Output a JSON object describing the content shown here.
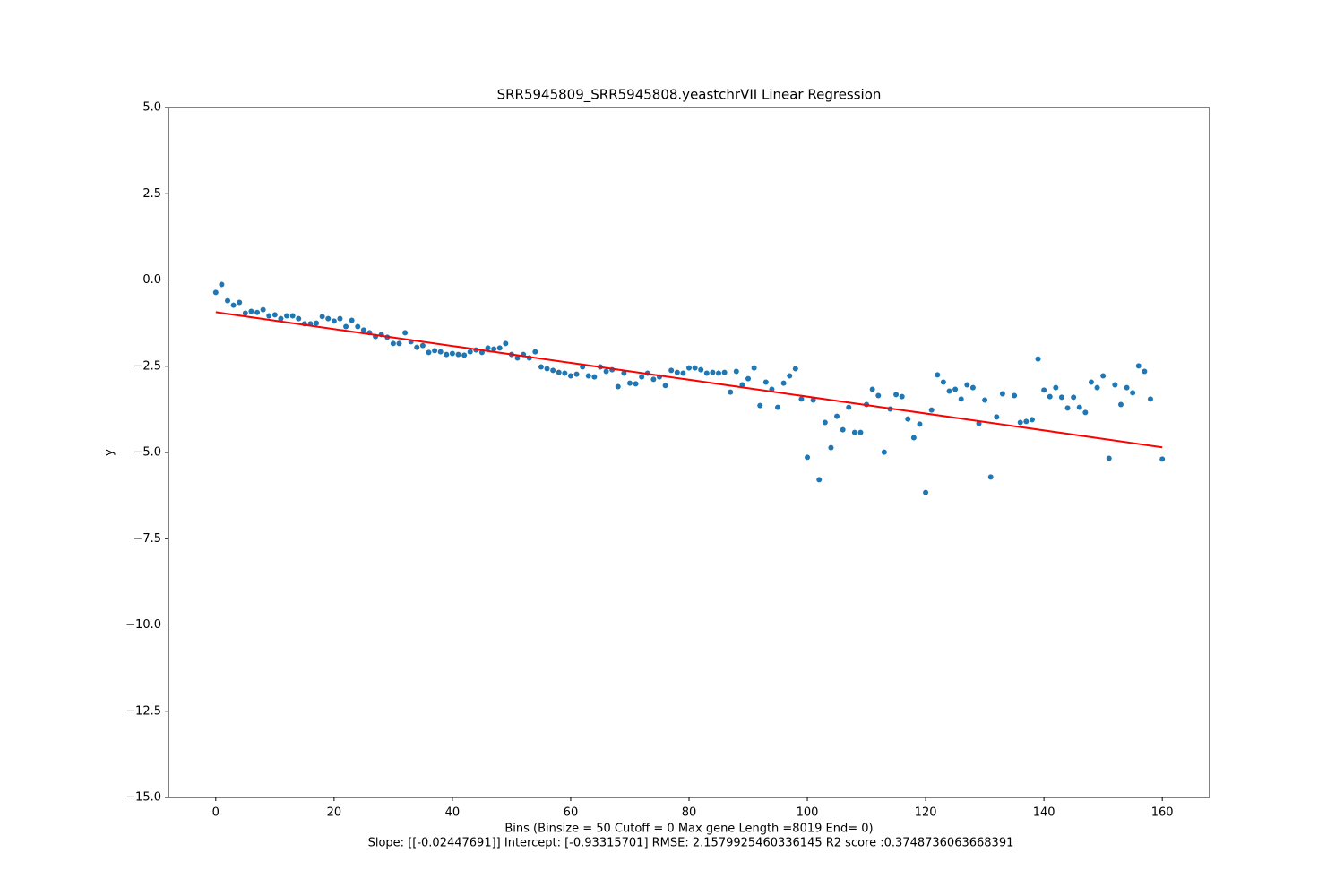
{
  "chart_data": {
    "type": "scatter",
    "title": "SRR5945809_SRR5945808.yeastchrVII Linear Regression",
    "x_label": "Bins  (Binsize = 50 Cutoff = 0 Max gene Length =8019 End= 0)",
    "x_label_2": "Slope: [[-0.02447691]] Intercept: [-0.93315701] RMSE: 2.1579925460336145 R2 score :0.3748736063668391",
    "y_label": "y",
    "xlim": [
      -8,
      168
    ],
    "ylim": [
      -15,
      5
    ],
    "xticks": [
      0,
      20,
      40,
      60,
      80,
      100,
      120,
      140,
      160
    ],
    "yticks": [
      {
        "value": -15,
        "label": "−15.0"
      },
      {
        "value": -12.5,
        "label": "−12.5"
      },
      {
        "value": -10,
        "label": "−10.0"
      },
      {
        "value": -7.5,
        "label": "−7.5"
      },
      {
        "value": -5,
        "label": "−5.0"
      },
      {
        "value": -2.5,
        "label": "−2.5"
      },
      {
        "value": 0,
        "label": "0.0"
      },
      {
        "value": 2.5,
        "label": "2.5"
      },
      {
        "value": 5,
        "label": "5.0"
      }
    ],
    "series": [
      {
        "color": "#1f77b4",
        "x": [
          0,
          1,
          2,
          3,
          4,
          5,
          6,
          7,
          8,
          9,
          10,
          11,
          12,
          13,
          14,
          15,
          16,
          17,
          18,
          19,
          20,
          21,
          22,
          23,
          24,
          25,
          26,
          27,
          28,
          29,
          30,
          31,
          32,
          33,
          34,
          35,
          36,
          37,
          38,
          39,
          40,
          41,
          42,
          43,
          44,
          45,
          46,
          47,
          48,
          49,
          50,
          51,
          52,
          53,
          54,
          55,
          56,
          57,
          58,
          59,
          60,
          61,
          62,
          63,
          64,
          65,
          66,
          67,
          68,
          69,
          70,
          71,
          72,
          73,
          74,
          75,
          76,
          77,
          78,
          79,
          80,
          81,
          82,
          83,
          84,
          85,
          86,
          87,
          88,
          89,
          90,
          91,
          92,
          93,
          94,
          95,
          96,
          97,
          98,
          99,
          100,
          101,
          102,
          103,
          104,
          105,
          106,
          107,
          108,
          109,
          110,
          111,
          112,
          113,
          114,
          115,
          116,
          117,
          118,
          119,
          120,
          121,
          122,
          123,
          124,
          125,
          126,
          127,
          128,
          129,
          130,
          131,
          132,
          133,
          135,
          136,
          137,
          138,
          139,
          140,
          141,
          142,
          143,
          144,
          145,
          146,
          147,
          148,
          149,
          150,
          151,
          152,
          153,
          154,
          155,
          156,
          157,
          158,
          160
        ],
        "values": [
          -0.36,
          -0.13,
          -0.6,
          -0.73,
          -0.65,
          -0.96,
          -0.91,
          -0.94,
          -0.86,
          -1.04,
          -1.01,
          -1.12,
          -1.04,
          -1.04,
          -1.12,
          -1.27,
          -1.27,
          -1.25,
          -1.06,
          -1.12,
          -1.19,
          -1.12,
          -1.35,
          -1.17,
          -1.35,
          -1.45,
          -1.53,
          -1.64,
          -1.58,
          -1.66,
          -1.84,
          -1.84,
          -1.53,
          -1.79,
          -1.95,
          -1.9,
          -2.1,
          -2.05,
          -2.08,
          -2.16,
          -2.13,
          -2.16,
          -2.18,
          -2.08,
          -2.03,
          -2.1,
          -1.97,
          -2.0,
          -1.97,
          -1.84,
          -2.16,
          -2.26,
          -2.16,
          -2.26,
          -2.08,
          -2.52,
          -2.57,
          -2.62,
          -2.68,
          -2.7,
          -2.78,
          -2.73,
          -2.52,
          -2.78,
          -2.81,
          -2.52,
          -2.65,
          -2.6,
          -3.09,
          -2.7,
          -2.99,
          -3.01,
          -2.81,
          -2.7,
          -2.88,
          -2.81,
          -3.06,
          -2.62,
          -2.68,
          -2.7,
          -2.55,
          -2.55,
          -2.6,
          -2.7,
          -2.68,
          -2.7,
          -2.68,
          -3.25,
          -2.65,
          -3.04,
          -2.86,
          -2.55,
          -3.64,
          -2.96,
          -3.17,
          -3.69,
          -2.99,
          -2.78,
          -2.57,
          -3.45,
          -5.14,
          -3.48,
          -5.79,
          -4.13,
          -4.86,
          -3.95,
          -4.34,
          -3.69,
          -4.42,
          -4.42,
          -3.61,
          -3.17,
          -3.35,
          -4.99,
          -3.74,
          -3.32,
          -3.38,
          -4.03,
          -4.57,
          -4.18,
          -6.16,
          -3.77,
          -2.75,
          -2.96,
          -3.22,
          -3.17,
          -3.45,
          -3.04,
          -3.12,
          -4.16,
          -3.48,
          -5.71,
          -3.97,
          -3.3,
          -3.35,
          -4.13,
          -4.1,
          -4.05,
          -2.29,
          -3.19,
          -3.38,
          -3.12,
          -3.4,
          -3.71,
          -3.4,
          -3.69,
          -3.84,
          -2.96,
          -3.12,
          -2.78,
          -5.17,
          -3.04,
          -3.61,
          -3.12,
          -3.27,
          -2.49,
          -2.65,
          -3.45,
          -5.19
        ]
      },
      {
        "type": "line",
        "color": "#ff0000",
        "x": [
          0,
          160
        ],
        "values": [
          -0.93315701,
          -4.84946261
        ]
      }
    ]
  }
}
